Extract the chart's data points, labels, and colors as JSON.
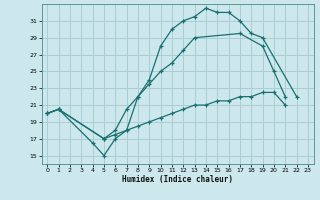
{
  "xlabel": "Humidex (Indice chaleur)",
  "bg_color": "#cce8ec",
  "grid_color": "#aacdd4",
  "line_color": "#1a7070",
  "xlim": [
    -0.5,
    23.5
  ],
  "ylim": [
    14,
    33
  ],
  "xticks": [
    0,
    1,
    2,
    3,
    4,
    5,
    6,
    7,
    8,
    9,
    10,
    11,
    12,
    13,
    14,
    15,
    16,
    17,
    18,
    19,
    20,
    21,
    22,
    23
  ],
  "yticks": [
    15,
    17,
    19,
    21,
    23,
    25,
    27,
    29,
    31
  ],
  "series": [
    {
      "x": [
        0,
        1,
        4,
        5,
        6,
        7,
        8,
        9,
        10,
        11,
        12,
        13,
        14,
        15,
        16,
        17,
        18,
        19,
        22
      ],
      "y": [
        20,
        20.5,
        16.5,
        15,
        17,
        18,
        22,
        24,
        28,
        30,
        31,
        31.5,
        32.5,
        32,
        32,
        31,
        29.5,
        29,
        22
      ]
    },
    {
      "x": [
        0,
        1,
        5,
        6,
        7,
        8,
        9,
        10,
        11,
        12,
        13,
        17,
        19,
        20,
        21
      ],
      "y": [
        20,
        20.5,
        17,
        18,
        20.5,
        22,
        23.5,
        25,
        26,
        27.5,
        29,
        29.5,
        28,
        25,
        22
      ]
    },
    {
      "x": [
        0,
        1,
        5,
        6,
        7,
        8,
        9,
        10,
        11,
        12,
        13,
        14,
        15,
        16,
        17,
        18,
        19,
        20,
        21
      ],
      "y": [
        20,
        20.5,
        17,
        17.5,
        18,
        18.5,
        19,
        19.5,
        20,
        20.5,
        21,
        21,
        21.5,
        21.5,
        22,
        22,
        22.5,
        22.5,
        21
      ]
    }
  ]
}
